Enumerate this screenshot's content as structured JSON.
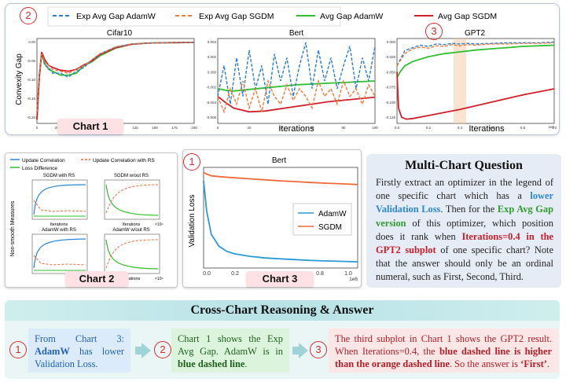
{
  "badges": {
    "one": "1",
    "two": "2",
    "three": "3"
  },
  "chart1": {
    "tag": "Chart 1",
    "legend": [
      "Exp Avg Gap AdamW",
      "Exp Avg Gap SGDM",
      "Avg Gap AdamW",
      "Avg Gap SGDM"
    ],
    "ylabel": "Convexity Gap",
    "xlabel": "Iterations",
    "panels": [
      "Cifar10",
      "Bert",
      "GPT2"
    ],
    "panel_ticks": {
      "cifar10_y": [
        "0.00",
        "-0.05",
        "-0.10",
        "-0.15",
        "-0.20"
      ],
      "cifar10_x": [
        "0",
        "25",
        "50",
        "75",
        "100",
        "125",
        "150",
        "175",
        "200"
      ],
      "bert_y": [
        "0.004",
        "0.002",
        "0.000",
        "-0.002",
        "-0.004",
        "-0.006"
      ],
      "bert_x": [
        "0",
        "20",
        "40",
        "60",
        "80",
        "100"
      ],
      "gpt2_y": [
        "0.000",
        "-0.025",
        "-0.050",
        "-0.075",
        "-0.100",
        "-0.125"
      ],
      "gpt2_x": [
        "0.0",
        "0.2",
        "0.4",
        "0.6",
        "0.8",
        "1.0"
      ],
      "gpt2_scale": "1e6"
    }
  },
  "chart2": {
    "tag": "Chart 2",
    "legend": [
      "Update Correlation",
      "Update Correlation with RS",
      "Loss Difference"
    ],
    "ylabel": "Non-smooth Measures",
    "panels": [
      "SGDM with RS",
      "SGDM w/out RS",
      "AdamW with RS",
      "AdamW w/out RS"
    ],
    "xlabel": "Iterations",
    "scale": "×10⁴"
  },
  "chart3": {
    "tag": "Chart 3",
    "title": "Bert",
    "ylabel": "Validation Loss",
    "legend": [
      "AdamW",
      "SGDM"
    ],
    "xticks": [
      "0.0",
      "0.2",
      "0.4",
      "0.6",
      "0.8",
      "1.0"
    ],
    "xscale": "1e6",
    "yticks": [
      "2",
      "3",
      "4",
      "5",
      "6",
      "7"
    ]
  },
  "question": {
    "title": "Multi-Chart Question",
    "t1": "Firstly extract an optimizer in the legend of one specific chart which has a ",
    "h1": "lower Validation Loss",
    "t2": ". Then for the ",
    "h2": "Exp Avg Gap version",
    "t3": " of this optimizer, which position does it rank when ",
    "h3": "Iterations=0.4 in the GPT2 subplot",
    "t4": " of one specific chart? Note that the answer should only be an ordinal numeral, such as First, Second, Third."
  },
  "reasoning": {
    "title": "Cross-Chart Reasoning & Answer",
    "s1a": "From Chart 3: ",
    "s1b": "AdamW",
    "s1c": " has lower Validation Loss.",
    "s2a": "Chart 1 shows the Exp Avg Gap. AdamW is in ",
    "s2b": "blue dashed line",
    "s2c": ".",
    "s3a": "The third subplot in Chart 1 shows the GPT2 result. When Iterations=0.4, the ",
    "s3b": "blue dashed line is higher than the orange dashed line",
    "s3c": ". So the answer is ",
    "s3d": "‘First’",
    "s3e": "."
  },
  "chart_data": [
    {
      "type": "line",
      "panel": "Cifar10",
      "xlabel": "",
      "ylabel": "Convexity Gap",
      "xlim": [
        0,
        200
      ],
      "ylim": [
        -0.21,
        0.01
      ],
      "series": [
        {
          "name": "Avg Gap AdamW",
          "color": "#2fbf2f",
          "style": "solid",
          "x": [
            0,
            3,
            6,
            10,
            15,
            20,
            30,
            40,
            50,
            60,
            70,
            80,
            100,
            120,
            140,
            160,
            180,
            200
          ],
          "y": [
            -0.2,
            -0.09,
            -0.03,
            -0.055,
            -0.07,
            -0.075,
            -0.085,
            -0.085,
            -0.08,
            -0.06,
            -0.05,
            -0.035,
            -0.015,
            -0.005,
            -0.002,
            -0.001,
            -0.0005,
            0
          ]
        },
        {
          "name": "Avg Gap SGDM",
          "color": "#d0202a",
          "style": "solid",
          "x": [
            0,
            3,
            6,
            10,
            15,
            20,
            30,
            40,
            50,
            60,
            70,
            80,
            100,
            120,
            140,
            160,
            180,
            200
          ],
          "y": [
            -0.2,
            -0.09,
            -0.025,
            -0.045,
            -0.06,
            -0.065,
            -0.072,
            -0.075,
            -0.07,
            -0.058,
            -0.048,
            -0.032,
            -0.014,
            -0.005,
            -0.002,
            -0.001,
            -0.0005,
            0
          ]
        },
        {
          "name": "Exp Avg Gap AdamW",
          "color": "#2a7fd4",
          "style": "dashed",
          "x": [
            0,
            3,
            6,
            10,
            15,
            20,
            30,
            40,
            50,
            60,
            70,
            80,
            100,
            120,
            140,
            160,
            180,
            200
          ],
          "y": [
            -0.18,
            -0.08,
            -0.03,
            -0.06,
            -0.065,
            -0.08,
            -0.08,
            -0.09,
            -0.075,
            -0.065,
            -0.045,
            -0.03,
            -0.012,
            -0.004,
            -0.002,
            -0.001,
            0,
            0
          ]
        },
        {
          "name": "Exp Avg Gap SGDM",
          "color": "#f07a3a",
          "style": "dashed",
          "x": [
            0,
            3,
            6,
            10,
            15,
            20,
            30,
            40,
            50,
            60,
            70,
            80,
            100,
            120,
            140,
            160,
            180,
            200
          ],
          "y": [
            -0.18,
            -0.08,
            -0.03,
            -0.05,
            -0.06,
            -0.07,
            -0.075,
            -0.08,
            -0.07,
            -0.06,
            -0.045,
            -0.03,
            -0.012,
            -0.004,
            -0.002,
            -0.001,
            0,
            0
          ]
        }
      ]
    },
    {
      "type": "line",
      "panel": "Bert",
      "xlabel": "Iterations",
      "ylabel": "",
      "xlim": [
        0,
        100
      ],
      "ylim": [
        -0.0065,
        0.0045
      ],
      "series": [
        {
          "name": "Avg Gap AdamW",
          "color": "#2fbf2f",
          "style": "solid",
          "x": [
            0,
            5,
            10,
            20,
            30,
            40,
            50,
            60,
            70,
            80,
            90,
            100
          ],
          "y": [
            -0.002,
            -0.0022,
            -0.0023,
            -0.0021,
            -0.0019,
            -0.0017,
            -0.0015,
            -0.0014,
            -0.0013,
            -0.0012,
            -0.0011,
            -0.001
          ]
        },
        {
          "name": "Avg Gap SGDM",
          "color": "#d0202a",
          "style": "solid",
          "x": [
            0,
            5,
            10,
            20,
            30,
            40,
            50,
            60,
            70,
            80,
            90,
            100
          ],
          "y": [
            -0.003,
            -0.0038,
            -0.0045,
            -0.005,
            -0.0049,
            -0.0046,
            -0.0043,
            -0.004,
            -0.0037,
            -0.0035,
            -0.0033,
            -0.0031
          ]
        },
        {
          "name": "Exp Avg Gap AdamW",
          "color": "#2a7fd4",
          "style": "dashed",
          "x": [
            0,
            4,
            8,
            12,
            16,
            20,
            24,
            28,
            32,
            36,
            40,
            44,
            48,
            52,
            56,
            60,
            64,
            68,
            72,
            76,
            80,
            84,
            88,
            92,
            96,
            100
          ],
          "y": [
            -0.003,
            0.001,
            -0.004,
            0.002,
            -0.003,
            0.003,
            -0.002,
            0.001,
            -0.004,
            0.0025,
            -0.001,
            0.002,
            -0.003,
            0.001,
            0.004,
            -0.002,
            0.003,
            -0.001,
            0.002,
            -0.002,
            0.001,
            0.0035,
            -0.002,
            0.002,
            -0.001,
            0.0035
          ]
        },
        {
          "name": "Exp Avg Gap SGDM",
          "color": "#f07a3a",
          "style": "dashed",
          "x": [
            0,
            4,
            8,
            12,
            16,
            20,
            24,
            28,
            32,
            36,
            40,
            44,
            48,
            52,
            56,
            60,
            64,
            68,
            72,
            76,
            80,
            84,
            88,
            92,
            96,
            100
          ],
          "y": [
            -0.003,
            -0.005,
            -0.002,
            -0.004,
            -0.001,
            -0.0045,
            -0.002,
            -0.005,
            -0.001,
            -0.003,
            -0.004,
            -0.0015,
            -0.0035,
            -0.002,
            -0.003,
            -0.0045,
            -0.001,
            -0.003,
            -0.002,
            -0.004,
            -0.001,
            -0.003,
            -0.002,
            -0.004,
            -0.0015,
            -0.003
          ]
        }
      ]
    },
    {
      "type": "line",
      "panel": "GPT2",
      "xlabel": "Iterations",
      "ylabel": "",
      "xlim": [
        0,
        1.0
      ],
      "ylim": [
        -0.135,
        0.005
      ],
      "highlight_x": 0.4,
      "series": [
        {
          "name": "Avg Gap AdamW",
          "color": "#2fbf2f",
          "style": "solid",
          "x": [
            0.0,
            0.02,
            0.05,
            0.1,
            0.2,
            0.3,
            0.4,
            0.5,
            0.6,
            0.7,
            0.8,
            0.9,
            1.0
          ],
          "y": [
            -0.06,
            -0.05,
            -0.04,
            -0.033,
            -0.025,
            -0.02,
            -0.017,
            -0.014,
            -0.012,
            -0.01,
            -0.008,
            -0.007,
            -0.006
          ]
        },
        {
          "name": "Avg Gap SGDM",
          "color": "#d0202a",
          "style": "solid",
          "x": [
            0.0,
            0.01,
            0.03,
            0.06,
            0.1,
            0.2,
            0.3,
            0.4,
            0.5,
            0.6,
            0.7,
            0.8,
            0.9,
            1.0
          ],
          "y": [
            -0.05,
            -0.11,
            -0.125,
            -0.128,
            -0.127,
            -0.122,
            -0.117,
            -0.112,
            -0.106,
            -0.1,
            -0.094,
            -0.088,
            -0.083,
            -0.078
          ]
        },
        {
          "name": "Exp Avg Gap AdamW",
          "color": "#2a7fd4",
          "style": "dashed",
          "x": [
            0.0,
            0.05,
            0.1,
            0.15,
            0.2,
            0.25,
            0.3,
            0.35,
            0.4,
            0.45,
            0.5,
            0.6,
            0.7,
            0.8,
            0.9,
            1.0
          ],
          "y": [
            -0.04,
            -0.015,
            -0.01,
            -0.006,
            -0.008,
            -0.004,
            -0.005,
            -0.003,
            -0.004,
            -0.003,
            -0.004,
            -0.003,
            -0.002,
            -0.002,
            -0.002,
            -0.001
          ]
        },
        {
          "name": "Exp Avg Gap SGDM",
          "color": "#f07a3a",
          "style": "dashed",
          "x": [
            0.0,
            0.05,
            0.1,
            0.15,
            0.2,
            0.25,
            0.3,
            0.35,
            0.4,
            0.45,
            0.5,
            0.6,
            0.7,
            0.8,
            0.9,
            1.0
          ],
          "y": [
            -0.04,
            -0.02,
            -0.012,
            -0.009,
            -0.011,
            -0.007,
            -0.008,
            -0.005,
            -0.007,
            -0.005,
            -0.006,
            -0.004,
            -0.004,
            -0.003,
            -0.003,
            -0.002
          ]
        }
      ]
    },
    {
      "type": "line",
      "panel": "Bert (Chart 3)",
      "title": "Bert",
      "xlabel": "",
      "ylabel": "Validation Loss",
      "xlim": [
        0,
        1.0
      ],
      "ylim": [
        1.6,
        7.6
      ],
      "series": [
        {
          "name": "AdamW",
          "color": "#2a9ad4",
          "style": "solid",
          "x": [
            0.0,
            0.02,
            0.05,
            0.1,
            0.15,
            0.2,
            0.3,
            0.4,
            0.5,
            0.6,
            0.7,
            0.8,
            0.9,
            1.0
          ],
          "y": [
            6.8,
            5.0,
            3.6,
            2.9,
            2.6,
            2.45,
            2.3,
            2.2,
            2.15,
            2.1,
            2.05,
            2.02,
            2.0,
            1.97
          ]
        },
        {
          "name": "SGDM",
          "color": "#ee6a3a",
          "style": "solid",
          "x": [
            0.0,
            0.02,
            0.05,
            0.1,
            0.2,
            0.3,
            0.4,
            0.5,
            0.6,
            0.7,
            0.8,
            0.9,
            1.0
          ],
          "y": [
            7.3,
            7.2,
            7.1,
            7.05,
            6.98,
            6.92,
            6.86,
            6.8,
            6.75,
            6.7,
            6.66,
            6.62,
            6.58
          ]
        }
      ]
    }
  ]
}
